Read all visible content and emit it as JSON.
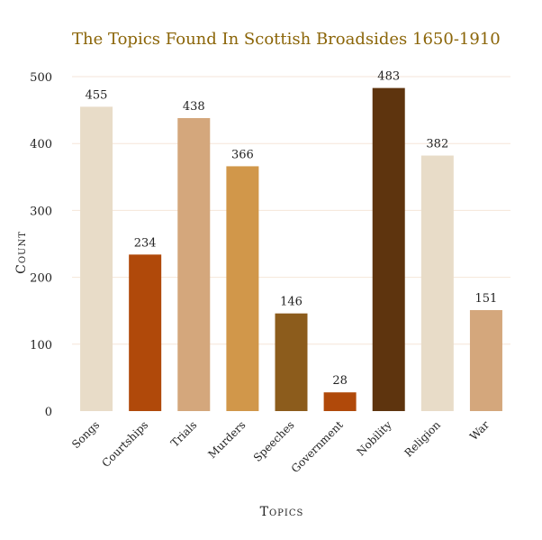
{
  "chart_data": {
    "type": "bar",
    "title": "The Topics Found In Scottish Broadsides 1650-1910",
    "xlabel": "Topics",
    "ylabel": "Count",
    "categories": [
      "Songs",
      "Courtships",
      "Trials",
      "Murders",
      "Speeches",
      "Government",
      "Nobility",
      "Religion",
      "War"
    ],
    "values": [
      455,
      234,
      438,
      366,
      146,
      28,
      483,
      382,
      151
    ],
    "colors": [
      "#e8dcc8",
      "#b0490a",
      "#d4a77c",
      "#d1974a",
      "#8c5c1c",
      "#b0490a",
      "#5e340e",
      "#e8dcc8",
      "#d4a77c"
    ],
    "yticks": [
      0,
      100,
      200,
      300,
      400,
      500
    ],
    "ylim": [
      0,
      500
    ],
    "grid": true,
    "title_color": "#8B6508"
  }
}
